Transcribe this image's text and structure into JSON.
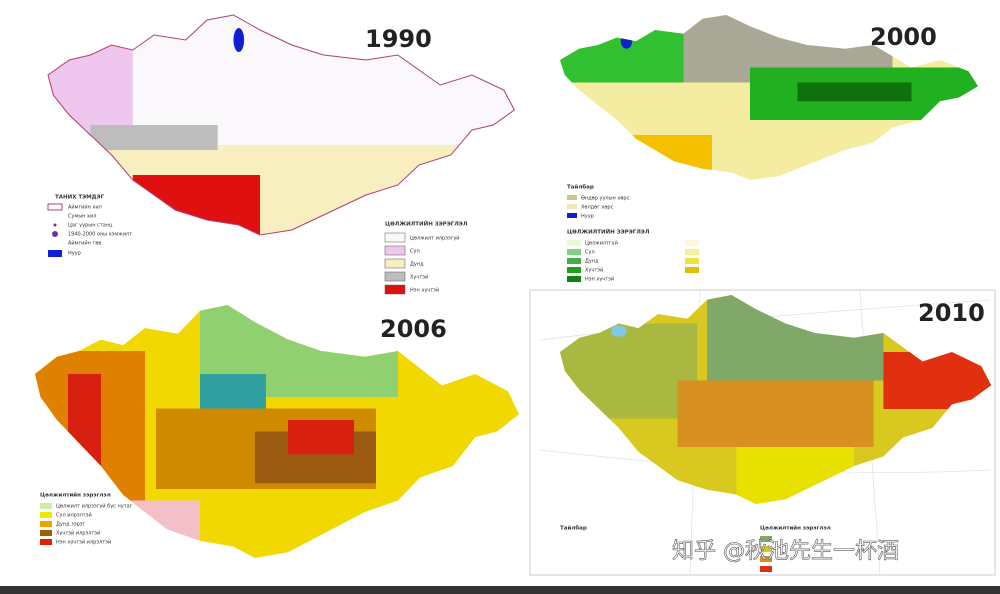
{
  "maps": [
    {
      "year": "1990",
      "legend_title": "ТАНИХ ТЭМДЭГ",
      "legend_items": [
        "Аймгийн хил",
        "Сумын хил",
        "Цаг уурын станц",
        "1940-2000 оны хэмжилт",
        "Аймгийн төв",
        "Нуур"
      ],
      "class_title": "ЦӨЛЖИЛТИЙН ЗЭРЭГЛЭЛ",
      "class_items": [
        "Цөлжилт илрээгүй",
        "Сул",
        "Дунд",
        "Хүчтэй",
        "Нэн хүчтэй"
      ]
    },
    {
      "year": "2000",
      "legend_title": "Тайлбар",
      "legend_items": [
        "Өндөр уулын хөрс",
        "Хөлдөг хөрс",
        "Нуур"
      ],
      "class_title": "ЦӨЛЖИЛТИЙН ЗЭРЭГЛЭЛ",
      "class_items": [
        "Цөлжилтгүй",
        "Сул",
        "Дунд",
        "Хүчтэй",
        "Нэн хүчтэй"
      ]
    },
    {
      "year": "2006",
      "class_title": "Цөлжилтийн зэрэглэл",
      "class_items": [
        "Цөлжилт илрээгүй бүс нутаг",
        "Сул илрэлтэй",
        "Дунд зэрэг",
        "Хүчтэй илрэлтэй",
        "Нэн хүчтэй илрэлтэй"
      ]
    },
    {
      "year": "2010",
      "legend_title": "Тайлбар",
      "class_title": "Цөлжилтийн зэрэглэл"
    }
  ],
  "watermark": "知乎 @秋池先生一杯酒"
}
